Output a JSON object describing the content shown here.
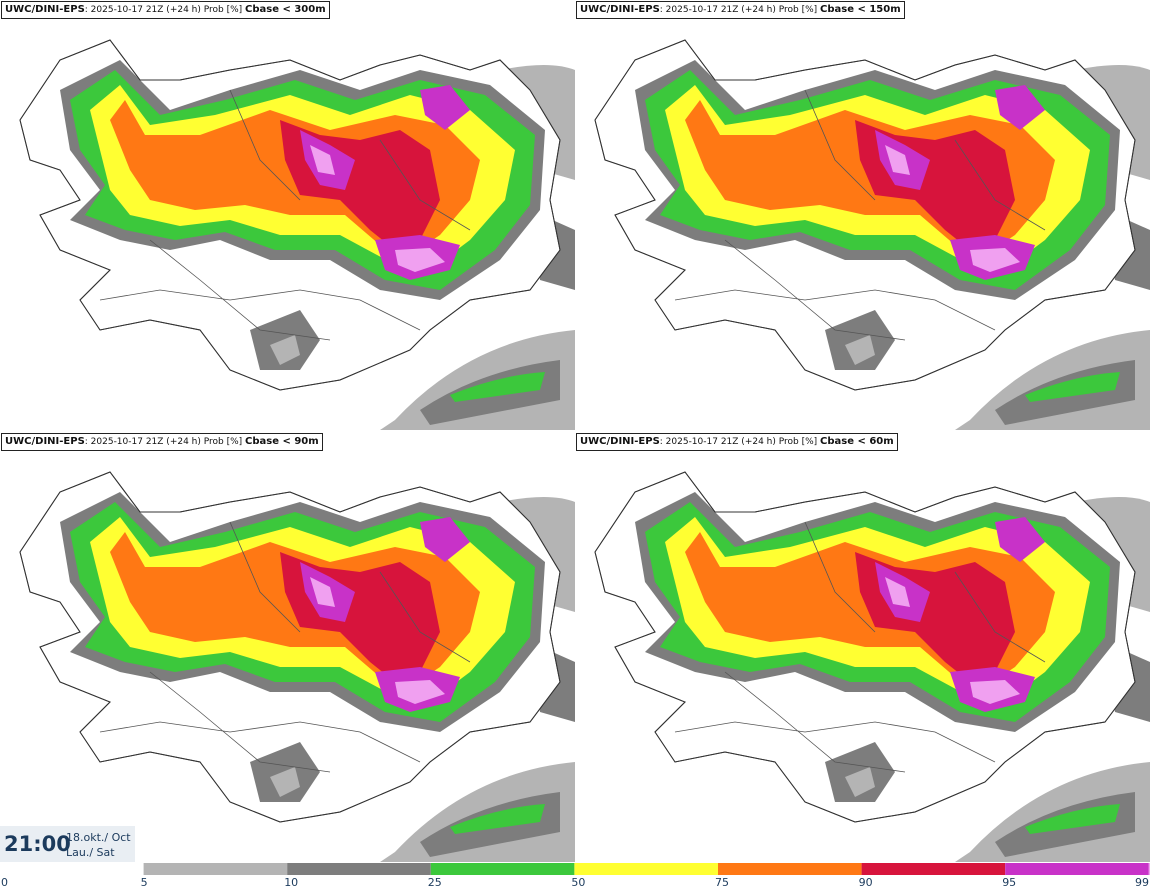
{
  "panels": [
    {
      "model": "UWC/DINI-EPS",
      "info": ": 2025-10-17 21Z (+24 h) Prob [%] ",
      "field": "Cbase < 300m"
    },
    {
      "model": "UWC/DINI-EPS",
      "info": ": 2025-10-17 21Z (+24 h) Prob [%] ",
      "field": "Cbase < 150m"
    },
    {
      "model": "UWC/DINI-EPS",
      "info": ": 2025-10-17 21Z (+24 h) Prob [%] ",
      "field": "Cbase < 90m"
    },
    {
      "model": "UWC/DINI-EPS",
      "info": ": 2025-10-17 21Z (+24 h) Prob [%] ",
      "field": "Cbase < 60m"
    }
  ],
  "time": {
    "clock": "21:00",
    "date": "18.okt./ Oct",
    "day": "Lau./ Sat"
  },
  "legend": {
    "ticks": [
      "0",
      "5",
      "10",
      "25",
      "50",
      "75",
      "90",
      "95",
      "99"
    ],
    "colors": [
      "#ffffff",
      "#b4b4b4",
      "#7d7d7d",
      "#3cc83c",
      "#ffff32",
      "#ff7814",
      "#d7143c",
      "#c832c8",
      "#f0a0f0"
    ]
  }
}
